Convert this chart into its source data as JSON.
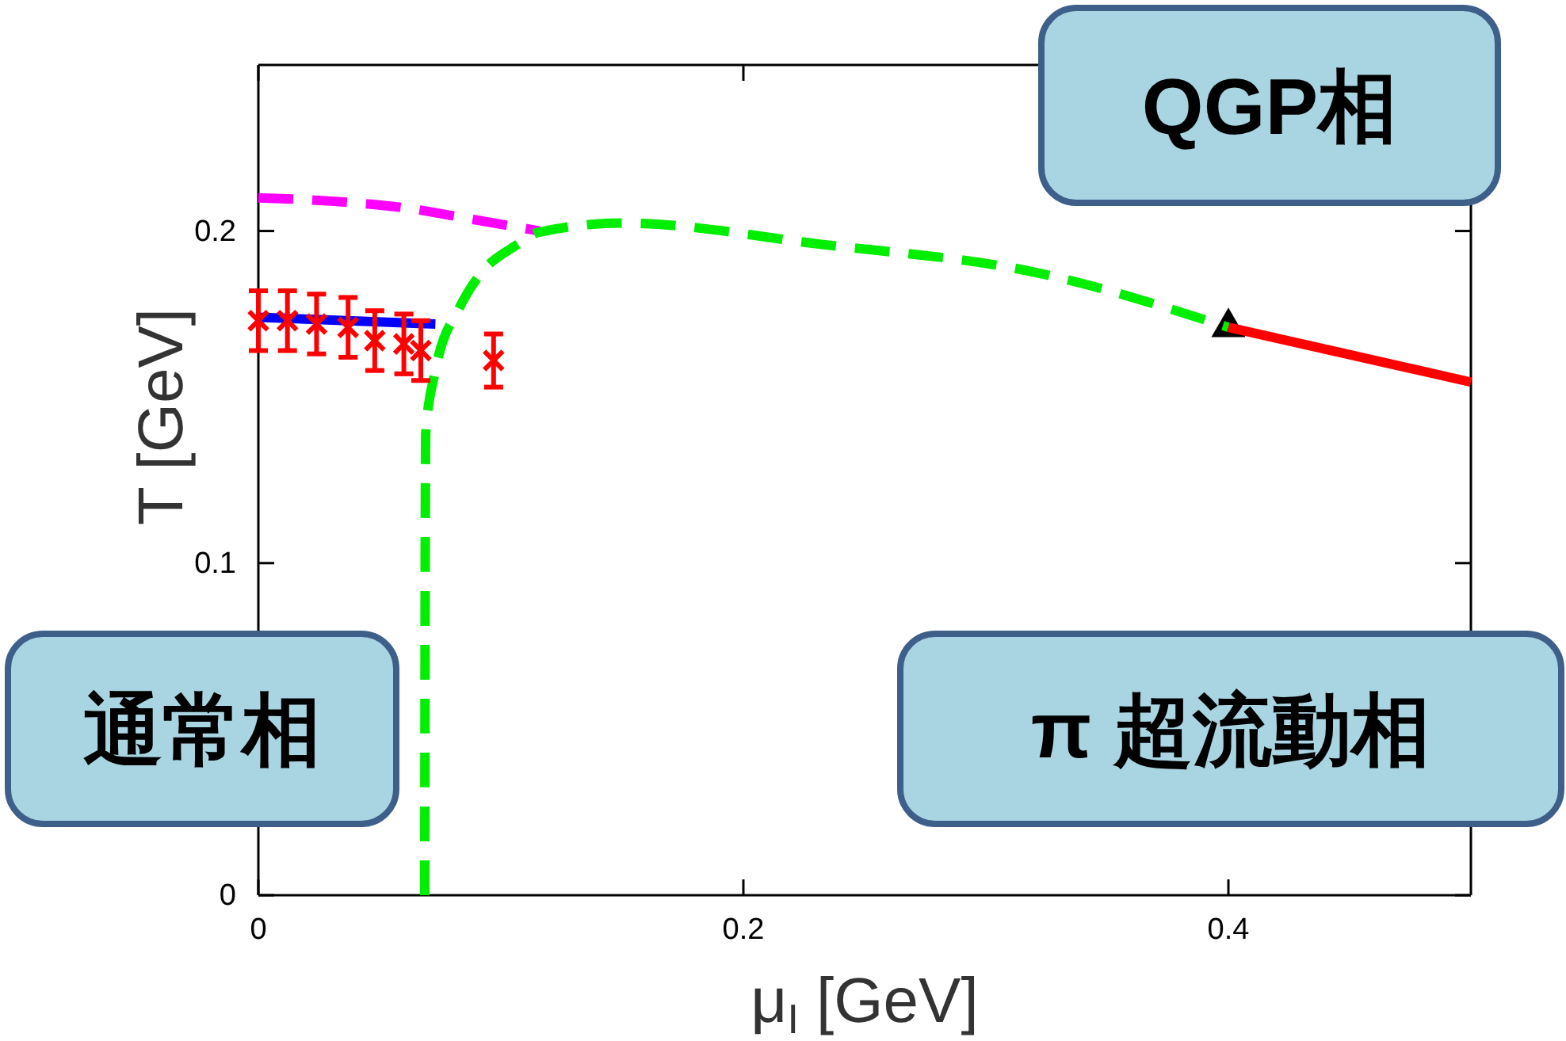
{
  "chart_data": {
    "type": "line",
    "xlabel": "μ$_{I}$ [GeV]",
    "ylabel": "T [GeV]",
    "xlim": [
      0,
      0.5
    ],
    "ylim": [
      0,
      0.25
    ],
    "xticks": [
      0,
      0.2,
      0.4
    ],
    "yticks": [
      0,
      0.1,
      0.2
    ],
    "grid": false,
    "annotations": [
      "QGP相",
      "通常相",
      "π 超流動相"
    ],
    "series": [
      {
        "type": "scatter",
        "color": "#000000",
        "marker": "triangle",
        "x": [
          0.4
        ],
        "values": [
          0.171
        ]
      },
      {
        "color": "#ff00ff",
        "line_style": "dashed",
        "x": [
          0,
          0.03,
          0.06,
          0.09,
          0.116
        ],
        "values": [
          0.21,
          0.209,
          0.207,
          0.2033,
          0.2
        ]
      },
      {
        "color": "#0000ff",
        "line_style": "solid",
        "x": [
          0,
          0.073
        ],
        "values": [
          0.174,
          0.172
        ]
      },
      {
        "color": "#00ee00",
        "line_style": "dashed",
        "x": [
          0.0686,
          0.0688,
          0.069,
          0.073,
          0.083,
          0.0915,
          0.107,
          0.115,
          0.15,
          0.232,
          0.32,
          0.4
        ],
        "values": [
          0,
          0.1,
          0.139,
          0.158,
          0.177,
          0.187,
          0.196,
          0.1995,
          0.2024,
          0.196,
          0.1876,
          0.171
        ]
      },
      {
        "color": "#ff0000",
        "line_style": "solid",
        "x": [
          0.4,
          0.451,
          0.5
        ],
        "values": [
          0.171,
          0.1626,
          0.1545
        ]
      },
      {
        "type": "scatter",
        "color": "#ff0000",
        "marker": "cross",
        "x": [
          0,
          0.012,
          0.024,
          0.037,
          0.048,
          0.06,
          0.067,
          0.097
        ],
        "values": [
          0.173,
          0.173,
          0.172,
          0.171,
          0.167,
          0.166,
          0.164,
          0.161
        ],
        "errors": [
          0.009,
          0.009,
          0.009,
          0.009,
          0.009,
          0.009,
          0.009,
          0.008
        ]
      }
    ]
  }
}
